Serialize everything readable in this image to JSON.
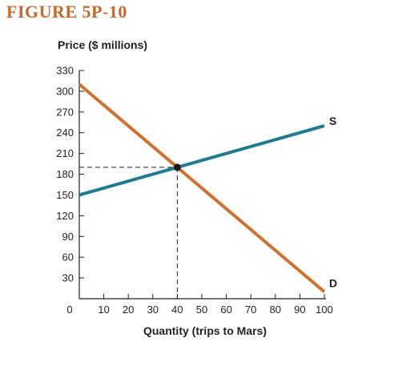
{
  "figure_title": "FIGURE 5P-10",
  "colors": {
    "title": "#c8682a",
    "supply": "#1b7c93",
    "demand": "#d2702d",
    "axis": "#231f20",
    "point": "#1a1a1a"
  },
  "chart_data": {
    "type": "line",
    "title": "",
    "xlabel": "Quantity (trips to Mars)",
    "ylabel": "Price ($ millions)",
    "xlim": [
      0,
      100
    ],
    "ylim": [
      0,
      330
    ],
    "x_ticks": [
      0,
      10,
      20,
      30,
      40,
      50,
      60,
      70,
      80,
      90,
      100
    ],
    "y_ticks": [
      30,
      60,
      90,
      120,
      150,
      180,
      210,
      240,
      270,
      300,
      330
    ],
    "grid": false,
    "series": [
      {
        "name": "S",
        "x": [
          0,
          100
        ],
        "y": [
          150,
          250
        ]
      },
      {
        "name": "D",
        "x": [
          0,
          100
        ],
        "y": [
          310,
          10
        ]
      }
    ],
    "equilibrium": {
      "x": 40,
      "y": 190
    }
  }
}
